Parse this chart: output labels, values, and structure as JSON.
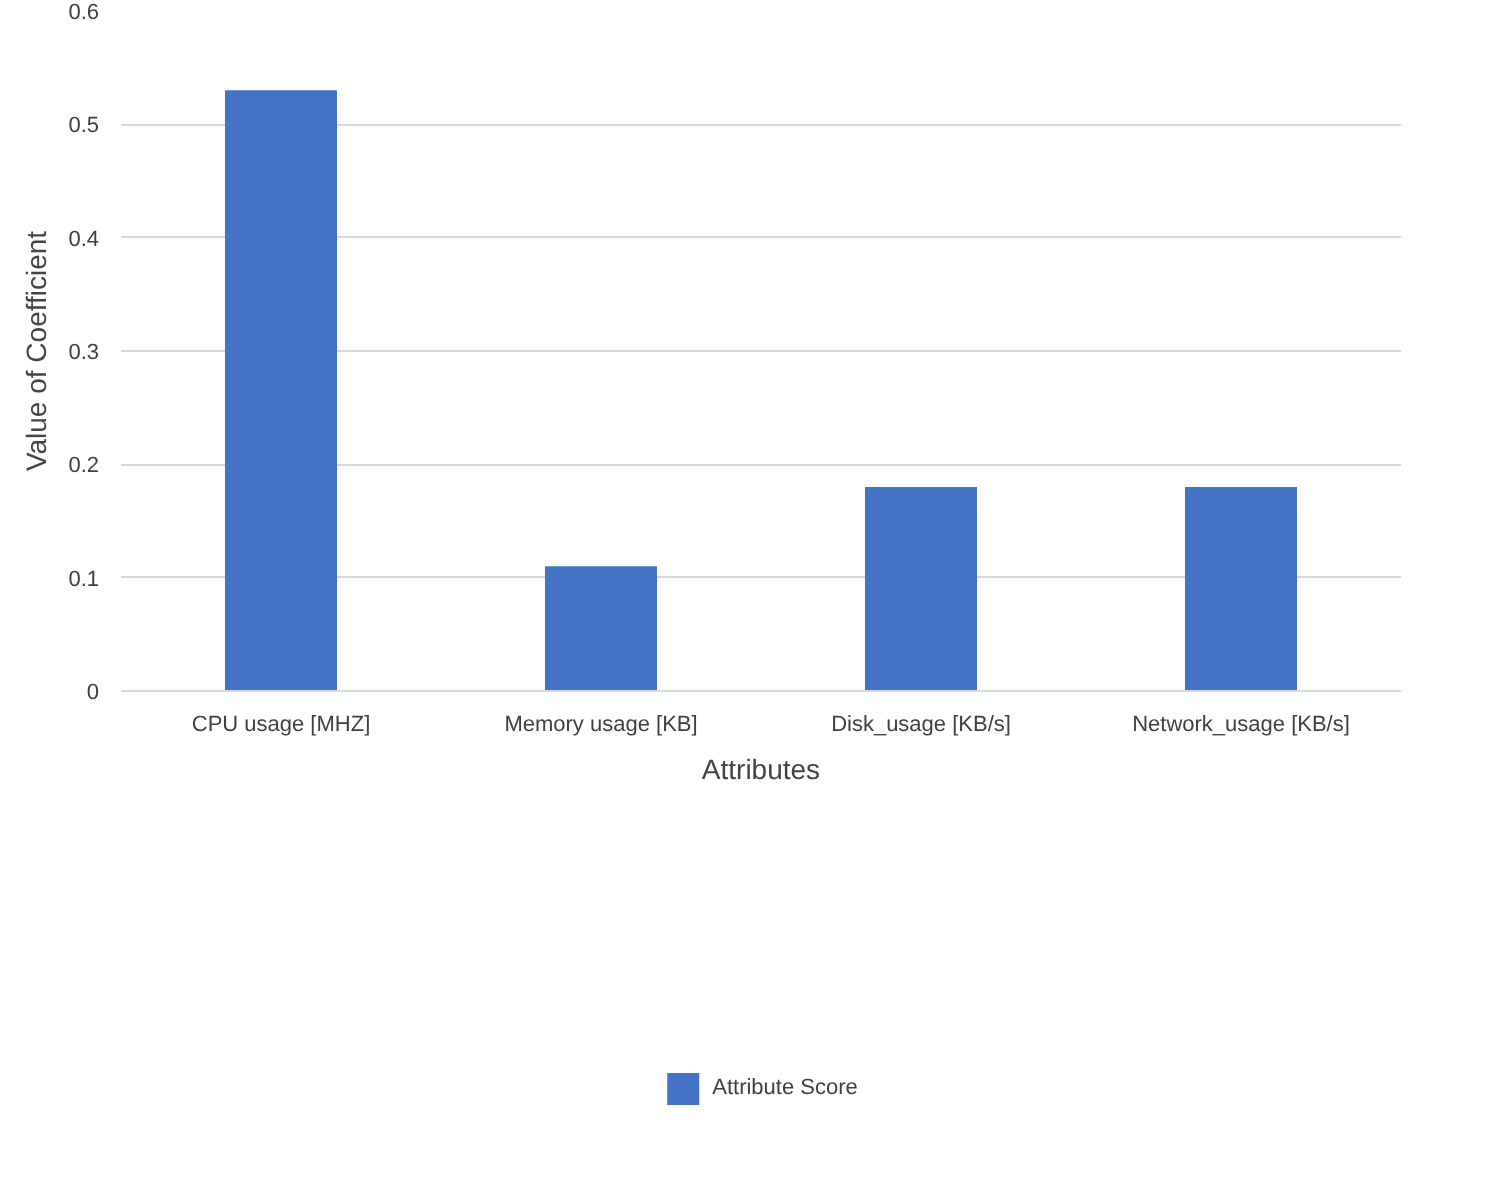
{
  "chart_data": {
    "type": "bar",
    "categories": [
      "CPU usage [MHZ]",
      "Memory usage [KB]",
      "Disk_usage [KB/s]",
      "Network_usage [KB/s]"
    ],
    "series": [
      {
        "name": "Attribute Score",
        "color": "#4472c4",
        "values": [
          0.53,
          0.11,
          0.18,
          0.18
        ]
      }
    ],
    "xlabel": "Attributes",
    "ylabel": "Value of Coefficient",
    "ylim": [
      0,
      0.6
    ],
    "yticks": [
      0,
      0.1,
      0.2,
      0.3,
      0.4,
      0.5,
      0.6
    ],
    "grid": "y",
    "legend": "bottom"
  }
}
